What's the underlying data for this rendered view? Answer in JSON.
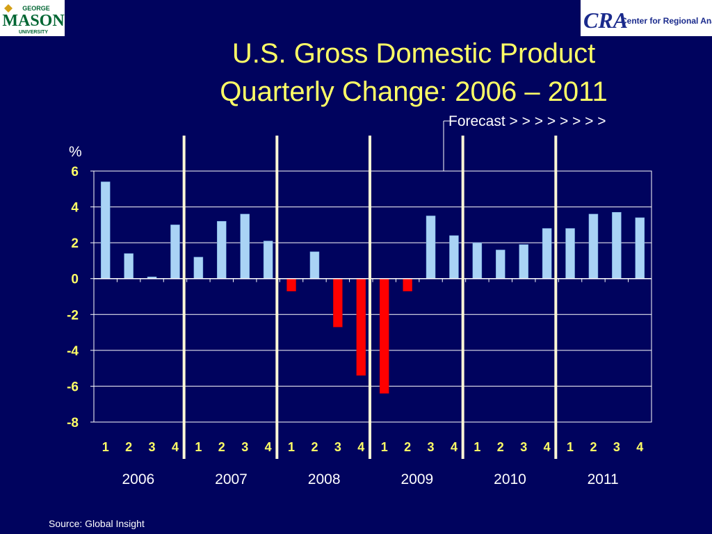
{
  "logos": {
    "gmu_top": "GEORGE",
    "gmu_name": "MASON",
    "gmu_bottom": "UNIVERSITY",
    "cra_mark": "CRA",
    "cra_name": "Center for Regional Analysis",
    "gmu_color": "#006633",
    "gmu_gold": "#d4a017",
    "cra_color": "#1a2a8c"
  },
  "title_line1": "U.S. Gross Domestic Product",
  "title_line2": "Quarterly Change: 2006 – 2011",
  "forecast_label": "Forecast",
  "forecast_arrows": "> >  > > > > > >",
  "source": "Source: Global Insight",
  "chart_data": {
    "type": "bar",
    "title": "U.S. Gross Domestic Product Quarterly Change: 2006 – 2011",
    "ylabel": "%",
    "ylim": [
      -8,
      6
    ],
    "yticks": [
      "6",
      "4",
      "2",
      "0",
      "-2",
      "-4",
      "-6",
      "-8"
    ],
    "grid": true,
    "categories": [
      "1",
      "2",
      "3",
      "4",
      "1",
      "2",
      "3",
      "4",
      "1",
      "2",
      "3",
      "4",
      "1",
      "2",
      "3",
      "4",
      "1",
      "2",
      "3",
      "4",
      "1",
      "2",
      "3",
      "4"
    ],
    "years": [
      "2006",
      "2007",
      "2008",
      "2009",
      "2010",
      "2011"
    ],
    "values": [
      5.4,
      1.4,
      0.1,
      3.0,
      1.2,
      3.2,
      3.6,
      2.1,
      -0.7,
      1.5,
      -2.7,
      -5.4,
      -6.4,
      -0.7,
      3.5,
      2.4,
      2.0,
      1.6,
      1.9,
      2.8,
      2.8,
      3.6,
      3.7,
      3.4
    ],
    "colors": {
      "positive": "#a9d3f5",
      "negative": "#ff0000",
      "grid": "#ffffff",
      "tick_label": "#ffff66",
      "separator": "#fff8d6"
    }
  }
}
